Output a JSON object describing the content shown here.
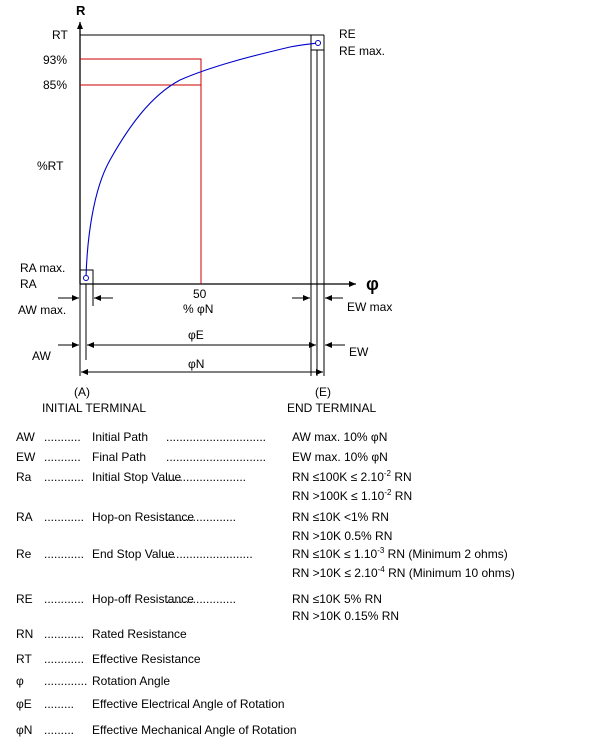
{
  "diagram": {
    "axis_r": "R",
    "axis_phi": "φ",
    "rt": "RT",
    "pct93": "93%",
    "pct85": "85%",
    "pct_rt": "%RT",
    "ra_max": "RA max.",
    "ra": "RA",
    "re": "RE",
    "re_max": "RE max.",
    "tick_50": "50",
    "pct_phin": "% φN",
    "aw_max": "AW max.",
    "ew_max": "EW max",
    "phie": "φE",
    "aw": "AW",
    "ew": "EW",
    "phin": "φN",
    "a_label": "(A)",
    "e_label": "(E)",
    "initial_terminal": "INITIAL TERMINAL",
    "end_terminal": "END TERMINAL"
  },
  "colors": {
    "curve": "#0000cc",
    "guides": "#cc0000",
    "lines": "#000000"
  },
  "legend": [
    {
      "abbr": "AW",
      "dots": "...........",
      "term": "Initial Path",
      "dots2": "..............................",
      "values": [
        "AW max. 10% φN"
      ]
    },
    {
      "abbr": "EW",
      "dots": "...........",
      "term": "Final Path",
      "dots2": "..............................",
      "values": [
        "EW max. 10% φN"
      ]
    },
    {
      "abbr": "Ra",
      "dots": "............",
      "term": "Initial Stop Value",
      "dots2": "........................",
      "values": [
        "RN ≤100K ≤ 2.10",
        "RN >100K ≤ 1.10"
      ],
      "sups": [
        "-2",
        "-2"
      ],
      "after": [
        " RN",
        " RN"
      ]
    },
    {
      "abbr": "RA",
      "dots": "............",
      "term": "Hop-on Resistance",
      "dots2": ".....................",
      "values": [
        "RN ≤10K <1% RN",
        "RN >10K 0.5% RN"
      ]
    },
    {
      "abbr": "Re",
      "dots": "............",
      "term": "End Stop Value",
      "dots2": "..........................",
      "values": [
        "RN ≤10K  ≤ 1.10",
        "RN >10K  ≤ 2.10"
      ],
      "sups": [
        "-3",
        "-4"
      ],
      "after": [
        " RN (Minimum 2 ohms)",
        " RN (Minimum 10 ohms)"
      ]
    },
    {
      "abbr": "RE",
      "dots": "............",
      "term": "Hop-off Resistance",
      "dots2": ".....................",
      "values": [
        "RN ≤10K  5% RN",
        "RN >10K  0.15% RN"
      ]
    },
    {
      "abbr": "RN",
      "dots": "............",
      "term": "Rated Resistance"
    },
    {
      "abbr": "RT",
      "dots": "............",
      "term": "Effective Resistance"
    },
    {
      "abbr": "φ",
      "dots": ".............",
      "term": "Rotation Angle"
    },
    {
      "abbr": "φE",
      "dots": ".........",
      "term": "Effective Electrical Angle of Rotation"
    },
    {
      "abbr": "φN",
      "dots": ".........",
      "term": "Effective Mechanical Angle of Rotation"
    }
  ]
}
